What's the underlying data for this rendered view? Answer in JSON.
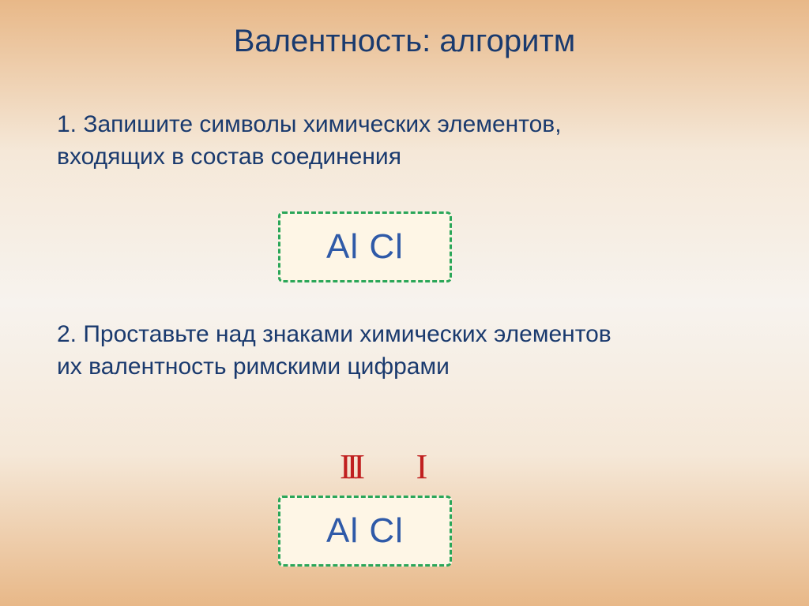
{
  "title": "Валентность: алгоритм",
  "step1": "1. Запишите символы химических элементов, входящих в состав соединения",
  "step2": "2. Проставьте над знаками химических элементов их валентность римскими цифрами",
  "formula": "Al Cl",
  "valence": {
    "al": "III",
    "cl": "I"
  },
  "colors": {
    "text_primary": "#1a3a6e",
    "formula_border": "#2aa659",
    "formula_bg": "#fef6e6",
    "formula_text": "#2f5aa8",
    "valence_text": "#c02020"
  }
}
